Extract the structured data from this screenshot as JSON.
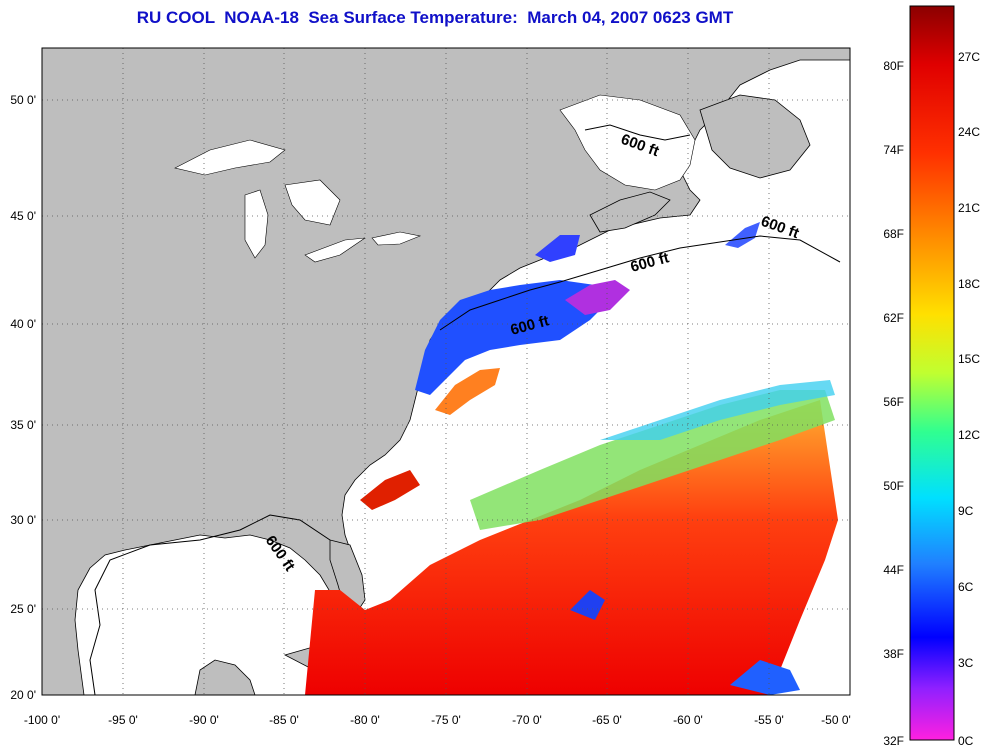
{
  "title": "RU COOL  NOAA-18  Sea Surface Temperature:  March 04, 2007 0623 GMT",
  "map": {
    "x_ticks": [
      "-100 0'",
      "-95 0'",
      "-90 0'",
      "-85 0'",
      "-80 0'",
      "-75 0'",
      "-70 0'",
      "-65 0'",
      "-60 0'",
      "-55 0'",
      "-50 0'"
    ],
    "y_ticks": [
      "50 0'",
      "45 0'",
      "40 0'",
      "35 0'",
      "30 0'",
      "25 0'",
      "20 0'"
    ],
    "xlim": [
      -100,
      -50
    ],
    "ylim": [
      20,
      52.5
    ],
    "isobath_label": "600 ft",
    "colors": {
      "land": "#bebebe",
      "cloud": "#ffffff",
      "coast": "#000000"
    }
  },
  "colorbar": {
    "fahrenheit_labels": [
      "80F",
      "74F",
      "68F",
      "62F",
      "56F",
      "50F",
      "44F",
      "38F",
      "32F"
    ],
    "celsius_labels": [
      "27C",
      "24C",
      "21C",
      "18C",
      "15C",
      "12C",
      "9C",
      "6C",
      "3C",
      "0C"
    ],
    "range_c": [
      0,
      28
    ]
  }
}
